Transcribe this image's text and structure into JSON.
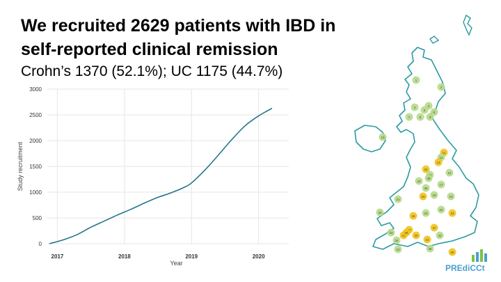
{
  "slide": {
    "title_line1": "We recruited 2629 patients with IBD in",
    "title_line2": "self-reported clinical remission",
    "subtitle": "Crohn’s 1370 (52.1%); UC 1175 (44.7%)",
    "logo_text": "PREdiCCt"
  },
  "colors": {
    "line": "#23748b",
    "grid": "#e6e6e6",
    "map_stroke": "#2a9aa0",
    "map_fill": "#ffffff",
    "site_green": "#b6d98a",
    "site_yellow": "#f2c21a",
    "logo": "#4a9fd0"
  },
  "chart_data": {
    "type": "line",
    "title": "",
    "xlabel": "Year",
    "ylabel": "Study recruitment",
    "xlim": [
      2016.85,
      2020.45
    ],
    "ylim": [
      0,
      3000
    ],
    "x_ticks": [
      2017,
      2018,
      2019,
      2020
    ],
    "y_ticks": [
      0,
      500,
      1000,
      1500,
      2000,
      2500,
      3000
    ],
    "grid": true,
    "series": [
      {
        "name": "Study recruitment",
        "x": [
          2016.88,
          2017.1,
          2017.3,
          2017.5,
          2017.7,
          2017.9,
          2018.1,
          2018.3,
          2018.5,
          2018.7,
          2018.9,
          2019.0,
          2019.2,
          2019.4,
          2019.6,
          2019.8,
          2020.0,
          2020.2
        ],
        "y": [
          0,
          80,
          180,
          320,
          440,
          560,
          670,
          790,
          900,
          990,
          1100,
          1180,
          1430,
          1720,
          2020,
          2290,
          2480,
          2629
        ]
      }
    ]
  },
  "map": {
    "sites": [
      {
        "label": "1",
        "color": "green"
      },
      {
        "label": "2",
        "color": "green"
      },
      {
        "label": "3",
        "color": "green"
      },
      {
        "label": "4",
        "color": "green"
      },
      {
        "label": "5",
        "color": "green"
      },
      {
        "label": "6",
        "color": "green"
      },
      {
        "label": "7",
        "color": "green"
      },
      {
        "label": "8",
        "color": "green"
      },
      {
        "label": "9",
        "color": "green"
      },
      {
        "label": "10",
        "color": "green"
      },
      {
        "label": "11",
        "color": "yellow"
      },
      {
        "label": "12",
        "color": "green"
      },
      {
        "label": "13",
        "color": "yellow"
      },
      {
        "label": "14",
        "color": "green"
      },
      {
        "label": "15",
        "color": "yellow"
      },
      {
        "label": "16",
        "color": "green"
      },
      {
        "label": "17",
        "color": "green"
      },
      {
        "label": "18",
        "color": "green"
      },
      {
        "label": "19",
        "color": "green"
      },
      {
        "label": "20",
        "color": "yellow"
      },
      {
        "label": "21",
        "color": "green"
      },
      {
        "label": "22",
        "color": "green"
      },
      {
        "label": "23",
        "color": "green"
      },
      {
        "label": "24",
        "color": "yellow"
      },
      {
        "label": "25",
        "color": "yellow"
      },
      {
        "label": "26",
        "color": "green"
      },
      {
        "label": "27",
        "color": "yellow"
      },
      {
        "label": "28",
        "color": "yellow"
      },
      {
        "label": "29",
        "color": "yellow"
      },
      {
        "label": "30",
        "color": "yellow"
      },
      {
        "label": "31",
        "color": "yellow"
      },
      {
        "label": "32",
        "color": "green"
      },
      {
        "label": "33",
        "color": "green"
      },
      {
        "label": "34",
        "color": "green"
      },
      {
        "label": "35",
        "color": "yellow"
      },
      {
        "label": "36",
        "color": "green"
      },
      {
        "label": "37",
        "color": "yellow"
      },
      {
        "label": "38",
        "color": "green"
      },
      {
        "label": "39",
        "color": "green"
      },
      {
        "label": "40",
        "color": "green"
      },
      {
        "label": "41",
        "color": "green"
      }
    ]
  }
}
